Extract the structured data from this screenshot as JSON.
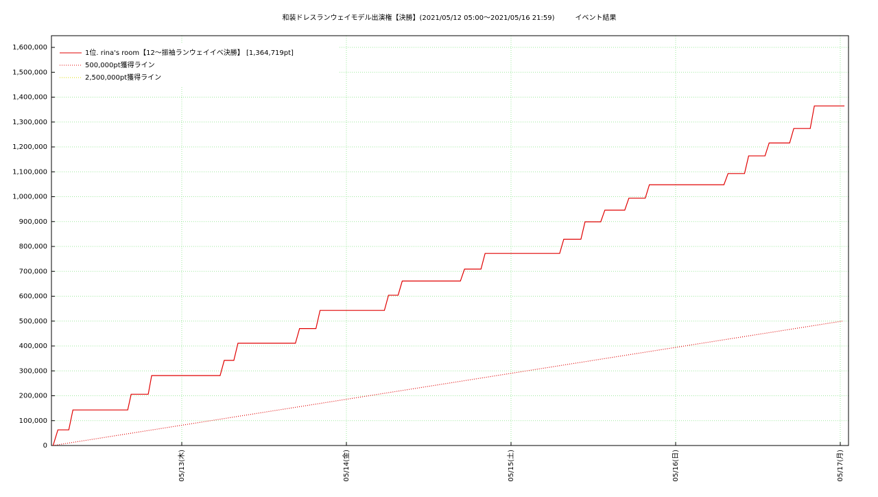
{
  "chart_data": {
    "type": "line",
    "title": "和装ドレスランウェイモデル出演権【決勝】(2021/05/12 05:00〜2021/05/16 21:59)　　　イベント結果",
    "xlim": [
      5,
      121.2
    ],
    "xticks": [
      {
        "value": 24,
        "label": "05/13(木)"
      },
      {
        "value": 48,
        "label": "05/14(金)"
      },
      {
        "value": 72,
        "label": "05/15(土)"
      },
      {
        "value": 96,
        "label": "05/16(日)"
      },
      {
        "value": 120,
        "label": "05/17(月)"
      }
    ],
    "ylim": [
      0,
      1647000
    ],
    "yticks": [
      {
        "value": 0,
        "label": "0"
      },
      {
        "value": 100000,
        "label": "100,000"
      },
      {
        "value": 200000,
        "label": "200,000"
      },
      {
        "value": 300000,
        "label": "300,000"
      },
      {
        "value": 400000,
        "label": "400,000"
      },
      {
        "value": 500000,
        "label": "500,000"
      },
      {
        "value": 600000,
        "label": "600,000"
      },
      {
        "value": 700000,
        "label": "700,000"
      },
      {
        "value": 800000,
        "label": "800,000"
      },
      {
        "value": 900000,
        "label": "900,000"
      },
      {
        "value": 1000000,
        "label": "1,000,000"
      },
      {
        "value": 1100000,
        "label": "1,100,000"
      },
      {
        "value": 1200000,
        "label": "1,200,000"
      },
      {
        "value": 1300000,
        "label": "1,300,000"
      },
      {
        "value": 1400000,
        "label": "1,400,000"
      },
      {
        "value": 1500000,
        "label": "1,500,000"
      },
      {
        "value": 1600000,
        "label": "1,600,000"
      }
    ],
    "grid": true,
    "legend": "upper left",
    "series": [
      {
        "name": "1位. rina's room【12〜振袖ランウェイイベ決勝】 [1,364,719pt]",
        "color": "#e00000",
        "linestyle": "solid",
        "x": [
          5.24,
          5.94,
          7.53,
          8.13,
          16.12,
          16.62,
          19.11,
          19.61,
          29.59,
          30.19,
          31.59,
          32.19,
          40.57,
          41.17,
          43.56,
          44.16,
          53.54,
          54.14,
          55.54,
          56.14,
          64.62,
          65.22,
          67.62,
          68.22,
          79.09,
          79.69,
          82.19,
          82.79,
          85.08,
          85.68,
          88.58,
          89.18,
          91.57,
          92.17,
          103.04,
          103.64,
          106.04,
          106.64,
          109.03,
          109.63,
          112.62,
          113.22,
          115.62,
          116.22,
          120.61
        ],
        "values": [
          0,
          63000,
          63000,
          143000,
          143000,
          206000,
          206000,
          281000,
          281000,
          342000,
          342000,
          411000,
          411000,
          470000,
          470000,
          543000,
          543000,
          604000,
          604000,
          661000,
          661000,
          709000,
          709000,
          772000,
          772000,
          829000,
          829000,
          899000,
          899000,
          946000,
          946000,
          994000,
          994000,
          1048000,
          1048000,
          1093000,
          1093000,
          1164000,
          1164000,
          1216000,
          1216000,
          1274000,
          1274000,
          1364719,
          1364719
        ]
      },
      {
        "name": "500,000pt獲得ライン",
        "color": "#e00000",
        "linestyle": "dotted",
        "x": [
          5.24,
          120.3
        ],
        "values": [
          0,
          500000
        ]
      },
      {
        "name": "2,500,000pt獲得ライン",
        "color": "#d8d800",
        "linestyle": "dotted",
        "x": [],
        "values": []
      }
    ]
  }
}
